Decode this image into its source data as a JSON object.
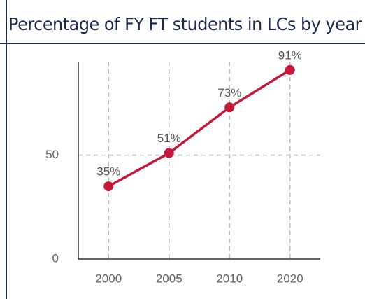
{
  "chart_data": {
    "type": "line",
    "title": "Percentage of FY FT students in LCs by year",
    "categories": [
      "2000",
      "2005",
      "2010",
      "2020"
    ],
    "values": [
      35,
      51,
      73,
      91
    ],
    "value_labels": [
      "35%",
      "51%",
      "73%",
      "91%"
    ],
    "color": "#c5173a",
    "ylim": [
      0,
      95
    ],
    "yticks": [
      0,
      50
    ],
    "grid": true
  }
}
